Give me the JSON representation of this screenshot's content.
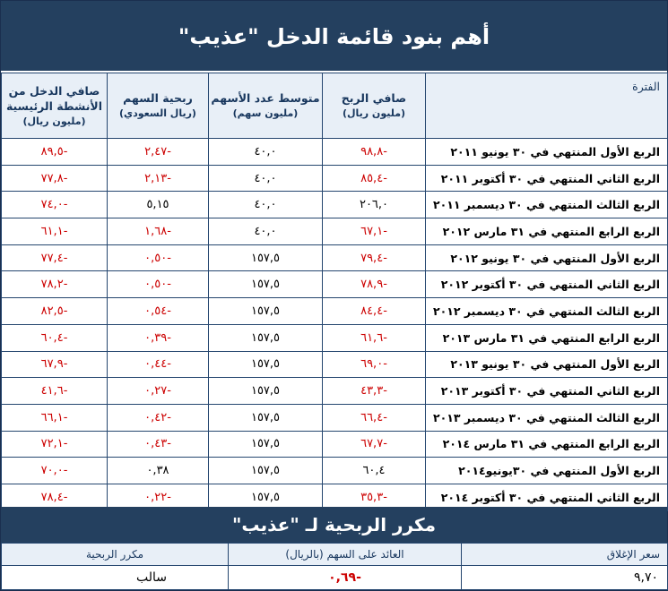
{
  "title": "أهم بنود قائمة الدخل \"عذيب\"",
  "columns": [
    {
      "label": "الفترة",
      "unit": ""
    },
    {
      "label": "صافي الربح",
      "unit": "(مليون ريال)"
    },
    {
      "label": "متوسط عدد الأسهم",
      "unit": "(مليون سهم)"
    },
    {
      "label": "ربحية السهم",
      "unit": "(ريال السعودي)"
    },
    {
      "label": "صافي الدخل من الأنشطة الرئيسية",
      "unit": "(مليون ريال)"
    }
  ],
  "rows": [
    {
      "period": "الربع الأول المنتهي في ٣٠ يونيو ٢٠١١",
      "net_profit": "-٩٨,٨",
      "avg_shares": "٤٠,٠",
      "eps": "-٢,٤٧",
      "core_income": "-٨٩,٥"
    },
    {
      "period": "الربع الثاني المنتهي في ٣٠ أكتوبر ٢٠١١",
      "net_profit": "-٨٥,٤",
      "avg_shares": "٤٠,٠",
      "eps": "-٢,١٣",
      "core_income": "-٧٧,٨"
    },
    {
      "period": "الربع الثالث المنتهي في ٣٠ ديسمبر ٢٠١١",
      "net_profit": "٢٠٦,٠",
      "avg_shares": "٤٠,٠",
      "eps": "٥,١٥",
      "core_income": "-٧٤,٠"
    },
    {
      "period": "الربع الرابع المنتهي في ٣١ مارس ٢٠١٢",
      "net_profit": "-٦٧,١",
      "avg_shares": "٤٠,٠",
      "eps": "-١,٦٨",
      "core_income": "-٦١,١"
    },
    {
      "period": "الربع الأول المنتهي في ٣٠ يونيو ٢٠١٢",
      "net_profit": "-٧٩,٤",
      "avg_shares": "١٥٧,٥",
      "eps": "-٠,٥٠",
      "core_income": "-٧٧,٤"
    },
    {
      "period": "الربع الثاني المنتهي في ٣٠ أكتوبر ٢٠١٢",
      "net_profit": "-٧٨,٩",
      "avg_shares": "١٥٧,٥",
      "eps": "-٠,٥٠",
      "core_income": "-٧٨,٢"
    },
    {
      "period": "الربع الثالث المنتهي في ٣٠ ديسمبر ٢٠١٢",
      "net_profit": "-٨٤,٤",
      "avg_shares": "١٥٧,٥",
      "eps": "-٠,٥٤",
      "core_income": "-٨٢,٥"
    },
    {
      "period": "الربع الرابع المنتهي في ٣١ مارس ٢٠١٣",
      "net_profit": "-٦١,٦",
      "avg_shares": "١٥٧,٥",
      "eps": "-٠,٣٩",
      "core_income": "-٦٠,٤"
    },
    {
      "period": "الربع الأول المنتهي في ٣٠ يونيو ٢٠١٣",
      "net_profit": "-٦٩,٠",
      "avg_shares": "١٥٧,٥",
      "eps": "-٠,٤٤",
      "core_income": "-٦٧,٩"
    },
    {
      "period": "الربع الثاني المنتهي في ٣٠ أكتوبر ٢٠١٣",
      "net_profit": "-٤٣,٣",
      "avg_shares": "١٥٧,٥",
      "eps": "-٠,٢٧",
      "core_income": "-٤١,٦"
    },
    {
      "period": "الربع الثالث المنتهي في ٣٠ ديسمبر ٢٠١٣",
      "net_profit": "-٦٦,٤",
      "avg_shares": "١٥٧,٥",
      "eps": "-٠,٤٢",
      "core_income": "-٦٦,١"
    },
    {
      "period": "الربع الرابع المنتهي في ٣١ مارس ٢٠١٤",
      "net_profit": "-٦٧,٧",
      "avg_shares": "١٥٧,٥",
      "eps": "-٠,٤٣",
      "core_income": "-٧٢,١"
    },
    {
      "period": "الربع الأول المنتهي في ٣٠يونيو٢٠١٤",
      "net_profit": "٦٠,٤",
      "avg_shares": "١٥٧,٥",
      "eps": "٠,٣٨",
      "core_income": "-٧٠,٠"
    },
    {
      "period": "الربع الثاني المنتهي في ٣٠ أكتوبر ٢٠١٤",
      "net_profit": "-٣٥,٣",
      "avg_shares": "١٥٧,٥",
      "eps": "-٠,٢٢",
      "core_income": "-٧٨,٤"
    }
  ],
  "ratio_title": "مكرر الربحية لـ \"عذيب\"",
  "ratio": {
    "headers": [
      "سعر الإغلاق",
      "العائد على السهم (بالريال)",
      "مكرر الربحية"
    ],
    "closing_price": "٩,٧٠",
    "eps": "-٠,٦٩",
    "pe": "سالب"
  },
  "colors": {
    "header_bg": "#24405f",
    "negative": "#cc0000",
    "subheader_bg": "#e8eff7",
    "border": "#25466f"
  }
}
